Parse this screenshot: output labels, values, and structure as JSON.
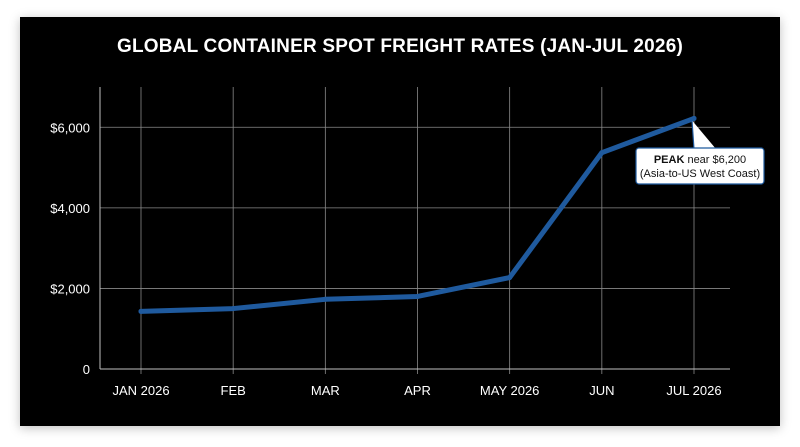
{
  "chart_data": {
    "type": "line",
    "title": "GLOBAL CONTAINER SPOT FREIGHT RATES (JAN-JUL 2026)",
    "categories": [
      "JAN 2026",
      "FEB",
      "MAR",
      "APR",
      "MAY 2026",
      "JUN",
      "JUL 2026"
    ],
    "series": [
      {
        "values": [
          1430,
          1500,
          1730,
          1800,
          2270,
          5370,
          6220
        ]
      }
    ],
    "y_ticks": [
      {
        "value": 0,
        "label": "0"
      },
      {
        "value": 2000,
        "label": "$2,000"
      },
      {
        "value": 4000,
        "label": "$4,000"
      },
      {
        "value": 6000,
        "label": "$6,000"
      }
    ],
    "ylim": [
      0,
      7000
    ],
    "grid": true,
    "line_color": "#1f5a9e",
    "annotation": {
      "category_index": 6,
      "bold": "PEAK",
      "text": " near $6,200",
      "line2": "(Asia-to-US West Coast)"
    }
  }
}
